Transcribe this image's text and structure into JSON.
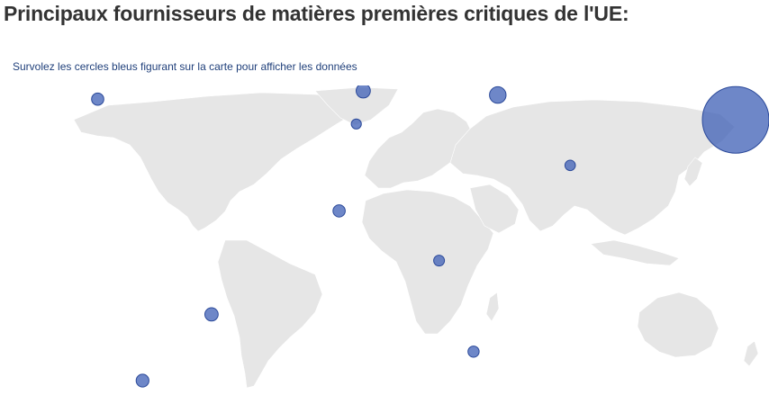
{
  "page": {
    "title": "Principaux fournisseurs de matières premières critiques de l'UE:",
    "instruction": "Survolez les cercles bleus figurant sur la carte pour afficher les données"
  },
  "map": {
    "land_color": "#e6e6e6",
    "marker_color": "#3d5fb5",
    "markers": [
      {
        "id": "china",
        "lon": 104,
        "lat": 33,
        "size": 1.0
      },
      {
        "id": "turkey",
        "lon": 35,
        "lat": 39,
        "size": 0.33
      },
      {
        "id": "kazakhstan",
        "lon": 66,
        "lat": 48,
        "size": 0.2
      },
      {
        "id": "spain",
        "lon": -4,
        "lat": 40,
        "size": 0.22
      },
      {
        "id": "france",
        "lon": 1.5,
        "lat": 46,
        "size": 0.2
      },
      {
        "id": "germany",
        "lon": 4.5,
        "lat": 49,
        "size": 0.16
      },
      {
        "id": "poland",
        "lon": 23,
        "lat": 50,
        "size": 0.13
      },
      {
        "id": "finland",
        "lon": 15,
        "lat": 61,
        "size": 0.1
      },
      {
        "id": "norway",
        "lon": -2,
        "lat": 56,
        "size": 0.09
      },
      {
        "id": "russia",
        "lon": 39,
        "lat": 55,
        "size": 0.09
      },
      {
        "id": "morocco",
        "lon": -6,
        "lat": 32,
        "size": 0.09
      },
      {
        "id": "usa",
        "lon": -81,
        "lat": 38,
        "size": 0.15
      },
      {
        "id": "mexico",
        "lon": -103,
        "lat": 23,
        "size": 0.1
      },
      {
        "id": "guinea",
        "lon": -11,
        "lat": 11,
        "size": 0.15
      },
      {
        "id": "drc",
        "lon": 18,
        "lat": -1,
        "size": 0.11
      },
      {
        "id": "oman",
        "lon": 56,
        "lat": 22,
        "size": 0.1
      },
      {
        "id": "brazil",
        "lon": -48,
        "lat": -14,
        "size": 0.19
      },
      {
        "id": "chile",
        "lon": -68,
        "lat": -30,
        "size": 0.17
      },
      {
        "id": "south-africa",
        "lon": 28,
        "lat": -23,
        "size": 0.12
      },
      {
        "id": "australia",
        "lon": 147,
        "lat": -25,
        "size": 0.09
      }
    ]
  }
}
